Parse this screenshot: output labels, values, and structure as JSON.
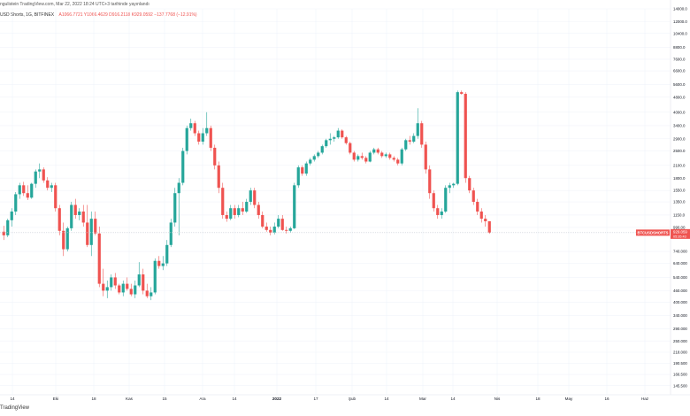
{
  "header": {
    "attribution": "ngulistein TradingView.com, Mar 22, 2022 18:24 UTC+3 tarihinde yayınlandı",
    "symbol": "USD Shorts, 1G, BITFINEX",
    "ohlc": "A1066.7721  Y1066.4629  D916.2118  K929.0592  −137.7768 (−12.91%)"
  },
  "price_tag": {
    "symbol_label": "BTCUSDSHORTS",
    "price": "929.059",
    "countdown": "05:35:43"
  },
  "footer": {
    "logo_text": "TradingView"
  },
  "colors": {
    "up": "#26a69a",
    "down": "#ef5350",
    "grid": "#f0f3fa",
    "axis_text": "#131722"
  },
  "chart_data": {
    "type": "candlestick",
    "scale": "log",
    "ylim": [
      145,
      14000
    ],
    "y_ticks": [
      "14000.0",
      "12000.0",
      "10400.0",
      "8800.0",
      "7600.0",
      "6600.0",
      "5600.0",
      "4800.0",
      "4000.0",
      "3400.0",
      "2900.0",
      "2500.0",
      "2100.0",
      "1800.0",
      "1550.0",
      "1350.0",
      "1150.0",
      "990.00",
      "740.000",
      "640.000",
      "540.000",
      "460.000",
      "400.000",
      "340.000",
      "290.000",
      "250.000",
      "218.000",
      "190.500",
      "166.500",
      "145.500"
    ],
    "x_ticks": [
      "14",
      "Eki",
      "18",
      "Kas",
      "15",
      "Ara",
      "14",
      "2022",
      "17",
      "Şub",
      "14",
      "Mar",
      "14",
      "Nis",
      "18",
      "May",
      "16",
      "Haz"
    ],
    "candles": [
      {
        "o": 940,
        "h": 1010,
        "l": 850,
        "c": 900
      },
      {
        "o": 900,
        "h": 1100,
        "l": 880,
        "c": 1080
      },
      {
        "o": 1080,
        "h": 1250,
        "l": 1000,
        "c": 1200
      },
      {
        "o": 1200,
        "h": 1520,
        "l": 1150,
        "c": 1480
      },
      {
        "o": 1480,
        "h": 1700,
        "l": 1400,
        "c": 1650
      },
      {
        "o": 1650,
        "h": 1720,
        "l": 1450,
        "c": 1500
      },
      {
        "o": 1500,
        "h": 1650,
        "l": 1380,
        "c": 1420
      },
      {
        "o": 1420,
        "h": 1700,
        "l": 1400,
        "c": 1680
      },
      {
        "o": 1680,
        "h": 2000,
        "l": 1600,
        "c": 1950
      },
      {
        "o": 1950,
        "h": 2150,
        "l": 1800,
        "c": 2000
      },
      {
        "o": 2000,
        "h": 2050,
        "l": 1700,
        "c": 1750
      },
      {
        "o": 1750,
        "h": 1820,
        "l": 1550,
        "c": 1600
      },
      {
        "o": 1600,
        "h": 1700,
        "l": 1520,
        "c": 1650
      },
      {
        "o": 1650,
        "h": 1700,
        "l": 1200,
        "c": 1250
      },
      {
        "o": 1250,
        "h": 1300,
        "l": 900,
        "c": 950
      },
      {
        "o": 950,
        "h": 1050,
        "l": 700,
        "c": 760
      },
      {
        "o": 760,
        "h": 1000,
        "l": 740,
        "c": 980
      },
      {
        "o": 980,
        "h": 1350,
        "l": 950,
        "c": 1300
      },
      {
        "o": 1300,
        "h": 1400,
        "l": 1100,
        "c": 1150
      },
      {
        "o": 1150,
        "h": 1250,
        "l": 1080,
        "c": 1200
      },
      {
        "o": 1200,
        "h": 1300,
        "l": 1000,
        "c": 1050
      },
      {
        "o": 1050,
        "h": 1300,
        "l": 780,
        "c": 800
      },
      {
        "o": 800,
        "h": 1200,
        "l": 700,
        "c": 1100
      },
      {
        "o": 1100,
        "h": 1200,
        "l": 900,
        "c": 920
      },
      {
        "o": 920,
        "h": 1000,
        "l": 480,
        "c": 500
      },
      {
        "o": 500,
        "h": 600,
        "l": 430,
        "c": 460
      },
      {
        "o": 460,
        "h": 520,
        "l": 420,
        "c": 480
      },
      {
        "o": 480,
        "h": 560,
        "l": 460,
        "c": 540
      },
      {
        "o": 540,
        "h": 570,
        "l": 470,
        "c": 490
      },
      {
        "o": 490,
        "h": 500,
        "l": 440,
        "c": 450
      },
      {
        "o": 450,
        "h": 520,
        "l": 430,
        "c": 500
      },
      {
        "o": 500,
        "h": 540,
        "l": 460,
        "c": 470
      },
      {
        "o": 470,
        "h": 500,
        "l": 430,
        "c": 440
      },
      {
        "o": 440,
        "h": 520,
        "l": 420,
        "c": 490
      },
      {
        "o": 490,
        "h": 650,
        "l": 480,
        "c": 560
      },
      {
        "o": 560,
        "h": 600,
        "l": 440,
        "c": 460
      },
      {
        "o": 460,
        "h": 500,
        "l": 420,
        "c": 430
      },
      {
        "o": 430,
        "h": 480,
        "l": 410,
        "c": 450
      },
      {
        "o": 450,
        "h": 680,
        "l": 440,
        "c": 660
      },
      {
        "o": 660,
        "h": 700,
        "l": 600,
        "c": 620
      },
      {
        "o": 620,
        "h": 700,
        "l": 590,
        "c": 640
      },
      {
        "o": 640,
        "h": 850,
        "l": 620,
        "c": 800
      },
      {
        "o": 800,
        "h": 1100,
        "l": 780,
        "c": 1050
      },
      {
        "o": 1050,
        "h": 1600,
        "l": 1000,
        "c": 1500
      },
      {
        "o": 1500,
        "h": 1800,
        "l": 900,
        "c": 1700
      },
      {
        "o": 1700,
        "h": 2600,
        "l": 1650,
        "c": 2500
      },
      {
        "o": 2500,
        "h": 3400,
        "l": 2400,
        "c": 3300
      },
      {
        "o": 3300,
        "h": 3700,
        "l": 3200,
        "c": 3500
      },
      {
        "o": 3500,
        "h": 3600,
        "l": 3000,
        "c": 3100
      },
      {
        "o": 3100,
        "h": 3200,
        "l": 2700,
        "c": 2800
      },
      {
        "o": 2800,
        "h": 3300,
        "l": 2700,
        "c": 3100
      },
      {
        "o": 3100,
        "h": 4000,
        "l": 3000,
        "c": 3300
      },
      {
        "o": 3300,
        "h": 3400,
        "l": 2500,
        "c": 2600
      },
      {
        "o": 2600,
        "h": 2700,
        "l": 2000,
        "c": 2100
      },
      {
        "o": 2100,
        "h": 2200,
        "l": 1500,
        "c": 1600
      },
      {
        "o": 1600,
        "h": 1700,
        "l": 1100,
        "c": 1150
      },
      {
        "o": 1150,
        "h": 1200,
        "l": 1060,
        "c": 1100
      },
      {
        "o": 1100,
        "h": 1300,
        "l": 1080,
        "c": 1250
      },
      {
        "o": 1250,
        "h": 1300,
        "l": 1100,
        "c": 1150
      },
      {
        "o": 1150,
        "h": 1300,
        "l": 1120,
        "c": 1250
      },
      {
        "o": 1250,
        "h": 1350,
        "l": 1150,
        "c": 1200
      },
      {
        "o": 1200,
        "h": 1400,
        "l": 1180,
        "c": 1350
      },
      {
        "o": 1350,
        "h": 1600,
        "l": 1300,
        "c": 1550
      },
      {
        "o": 1550,
        "h": 1600,
        "l": 1250,
        "c": 1300
      },
      {
        "o": 1300,
        "h": 1350,
        "l": 1100,
        "c": 1150
      },
      {
        "o": 1150,
        "h": 1200,
        "l": 980,
        "c": 1000
      },
      {
        "o": 1000,
        "h": 1050,
        "l": 940,
        "c": 960
      },
      {
        "o": 960,
        "h": 1000,
        "l": 900,
        "c": 930
      },
      {
        "o": 930,
        "h": 1050,
        "l": 910,
        "c": 1000
      },
      {
        "o": 1000,
        "h": 1150,
        "l": 980,
        "c": 1100
      },
      {
        "o": 1100,
        "h": 1150,
        "l": 950,
        "c": 960
      },
      {
        "o": 960,
        "h": 1000,
        "l": 920,
        "c": 950
      },
      {
        "o": 950,
        "h": 1000,
        "l": 930,
        "c": 980
      },
      {
        "o": 980,
        "h": 1700,
        "l": 970,
        "c": 1650
      },
      {
        "o": 1650,
        "h": 2100,
        "l": 1600,
        "c": 2050
      },
      {
        "o": 2050,
        "h": 2100,
        "l": 1850,
        "c": 1900
      },
      {
        "o": 1900,
        "h": 2200,
        "l": 1850,
        "c": 2150
      },
      {
        "o": 2150,
        "h": 2300,
        "l": 2100,
        "c": 2250
      },
      {
        "o": 2250,
        "h": 2400,
        "l": 2200,
        "c": 2350
      },
      {
        "o": 2350,
        "h": 2500,
        "l": 2300,
        "c": 2450
      },
      {
        "o": 2450,
        "h": 2700,
        "l": 2400,
        "c": 2650
      },
      {
        "o": 2650,
        "h": 2900,
        "l": 2600,
        "c": 2850
      },
      {
        "o": 2850,
        "h": 3100,
        "l": 2700,
        "c": 2900
      },
      {
        "o": 2900,
        "h": 3000,
        "l": 2800,
        "c": 2950
      },
      {
        "o": 2950,
        "h": 3300,
        "l": 2900,
        "c": 3200
      },
      {
        "o": 3200,
        "h": 3250,
        "l": 2900,
        "c": 2950
      },
      {
        "o": 2950,
        "h": 3000,
        "l": 2700,
        "c": 2750
      },
      {
        "o": 2750,
        "h": 2800,
        "l": 2400,
        "c": 2450
      },
      {
        "o": 2450,
        "h": 2500,
        "l": 2200,
        "c": 2250
      },
      {
        "o": 2250,
        "h": 2400,
        "l": 2200,
        "c": 2350
      },
      {
        "o": 2350,
        "h": 2450,
        "l": 2250,
        "c": 2300
      },
      {
        "o": 2300,
        "h": 2350,
        "l": 2150,
        "c": 2200
      },
      {
        "o": 2200,
        "h": 2500,
        "l": 2180,
        "c": 2450
      },
      {
        "o": 2450,
        "h": 2600,
        "l": 2400,
        "c": 2550
      },
      {
        "o": 2550,
        "h": 2600,
        "l": 2400,
        "c": 2450
      },
      {
        "o": 2450,
        "h": 2500,
        "l": 2300,
        "c": 2350
      },
      {
        "o": 2350,
        "h": 2450,
        "l": 2300,
        "c": 2400
      },
      {
        "o": 2400,
        "h": 2450,
        "l": 2250,
        "c": 2300
      },
      {
        "o": 2300,
        "h": 2350,
        "l": 2200,
        "c": 2250
      },
      {
        "o": 2250,
        "h": 2300,
        "l": 2100,
        "c": 2150
      },
      {
        "o": 2150,
        "h": 2600,
        "l": 2100,
        "c": 2550
      },
      {
        "o": 2550,
        "h": 2900,
        "l": 2500,
        "c": 2850
      },
      {
        "o": 2850,
        "h": 3000,
        "l": 2700,
        "c": 2800
      },
      {
        "o": 2800,
        "h": 3100,
        "l": 2750,
        "c": 3000
      },
      {
        "o": 3000,
        "h": 4200,
        "l": 2900,
        "c": 3500
      },
      {
        "o": 3500,
        "h": 3600,
        "l": 2600,
        "c": 2700
      },
      {
        "o": 2700,
        "h": 2800,
        "l": 1900,
        "c": 2000
      },
      {
        "o": 2000,
        "h": 2100,
        "l": 1400,
        "c": 1500
      },
      {
        "o": 1500,
        "h": 1550,
        "l": 1200,
        "c": 1250
      },
      {
        "o": 1250,
        "h": 1300,
        "l": 1100,
        "c": 1150
      },
      {
        "o": 1150,
        "h": 1250,
        "l": 1100,
        "c": 1200
      },
      {
        "o": 1200,
        "h": 1650,
        "l": 1180,
        "c": 1600
      },
      {
        "o": 1600,
        "h": 1700,
        "l": 1500,
        "c": 1650
      },
      {
        "o": 1650,
        "h": 1700,
        "l": 1600,
        "c": 1680
      },
      {
        "o": 1680,
        "h": 5200,
        "l": 1650,
        "c": 5100
      },
      {
        "o": 5100,
        "h": 5200,
        "l": 4950,
        "c": 5000
      },
      {
        "o": 5000,
        "h": 5100,
        "l": 1700,
        "c": 1800
      },
      {
        "o": 1800,
        "h": 1850,
        "l": 1500,
        "c": 1550
      },
      {
        "o": 1550,
        "h": 1600,
        "l": 1300,
        "c": 1350
      },
      {
        "o": 1350,
        "h": 1400,
        "l": 1150,
        "c": 1200
      },
      {
        "o": 1200,
        "h": 1250,
        "l": 1050,
        "c": 1100
      },
      {
        "o": 1100,
        "h": 1150,
        "l": 1000,
        "c": 1066.77
      },
      {
        "o": 1066.77,
        "h": 1066.46,
        "l": 916.21,
        "c": 929.06
      }
    ]
  }
}
